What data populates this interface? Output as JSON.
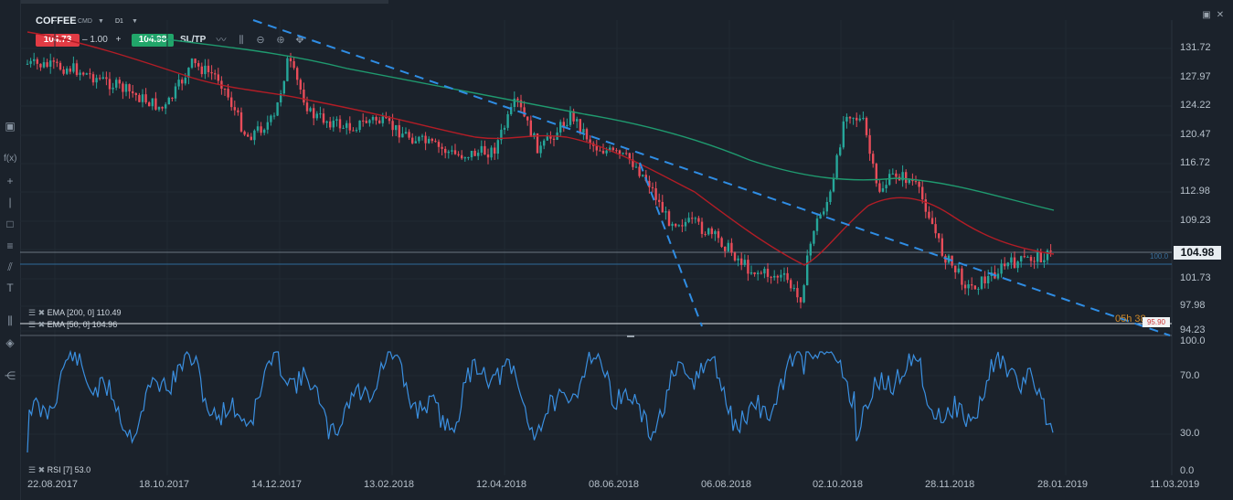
{
  "instrument": {
    "symbol": "COFFEE",
    "type": "CMD",
    "timeframe": "D1",
    "bid": "104.73",
    "spread_minus": "–",
    "spread_value": "1.00",
    "spread_plus": "+",
    "ask": "104.98",
    "sltp": "SL/TP"
  },
  "toolbar": {
    "icons": [
      "line-chart-icon",
      "candlestick-icon",
      "zoom-out-icon",
      "zoom-in-icon",
      "move-icon"
    ]
  },
  "window": {
    "icons": [
      "maximize-icon",
      "close-icon"
    ]
  },
  "price_axis": [
    "131.72",
    "127.97",
    "124.22",
    "120.47",
    "116.72",
    "112.98",
    "109.23",
    "104.98",
    "101.73",
    "97.98",
    "94.23"
  ],
  "current_price": "104.98",
  "level_partial": "100.0",
  "countdown": "05h 38",
  "level_label": "95.90",
  "rsi_axis": [
    "100.0",
    "70.0",
    "30.0",
    "0.0"
  ],
  "date_axis": [
    "22.08.2017",
    "18.10.2017",
    "14.12.2017",
    "13.02.2018",
    "12.04.2018",
    "08.06.2018",
    "06.08.2018",
    "02.10.2018",
    "28.11.2018",
    "28.01.2019",
    "11.03.2019"
  ],
  "indicators": {
    "ema200": "EMA [200, 0] 110.49",
    "ema50": "EMA [50, 0] 104.96",
    "rsi": "RSI [7] 53.0"
  },
  "colors": {
    "bull": "#26a69a",
    "bear": "#e84c59",
    "ema200": "#1f9a6f",
    "ema50": "#b21d26",
    "rsi": "#3a8fe0",
    "trendline": "#2f8de4"
  }
}
